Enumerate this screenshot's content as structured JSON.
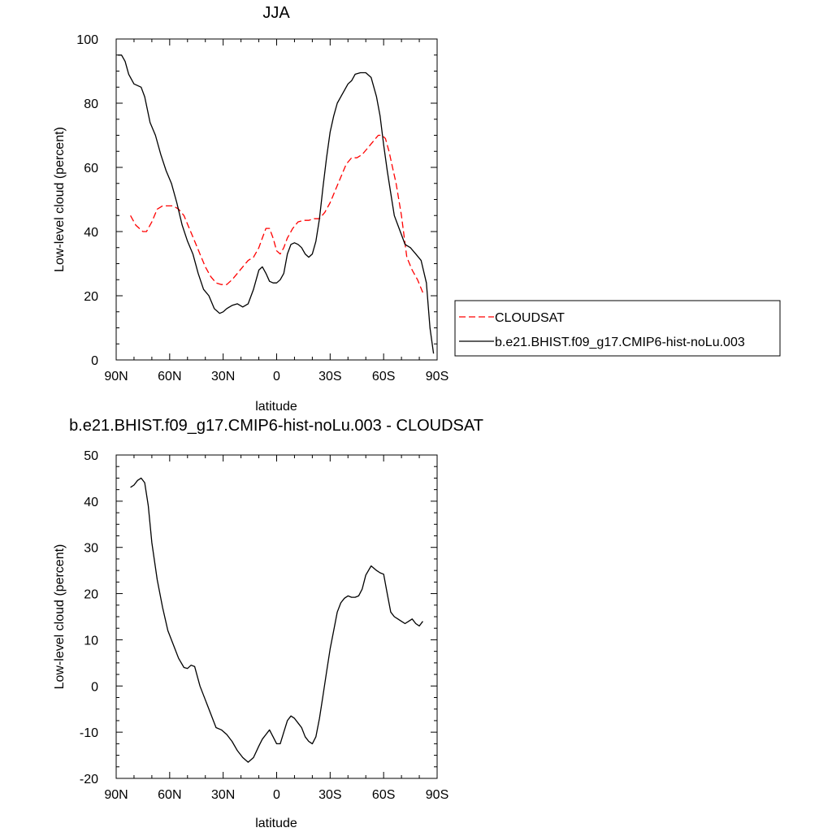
{
  "chart_data": [
    {
      "type": "line",
      "title": "JJA",
      "xlabel": "latitude",
      "ylabel": "Low-level cloud (percent)",
      "xlim": [
        90,
        -90
      ],
      "ylim": [
        0,
        100
      ],
      "xticks": [
        90,
        60,
        30,
        0,
        -30,
        -60,
        -90
      ],
      "xtick_labels": [
        "90N",
        "60N",
        "30N",
        "0",
        "30S",
        "60S",
        "90S"
      ],
      "yticks": [
        0,
        20,
        40,
        60,
        80,
        100
      ],
      "ytick_labels": [
        "0",
        "20",
        "40",
        "60",
        "80",
        "100"
      ],
      "legend_position": "right",
      "series": [
        {
          "name": "CLOUDSAT",
          "color": "#ff0000",
          "dash": "dashed",
          "x": [
            82,
            79,
            77,
            75,
            73,
            70,
            67,
            64,
            61,
            58,
            55,
            52,
            49,
            46,
            43,
            40,
            37,
            34,
            31,
            28,
            25,
            22,
            19,
            16,
            13,
            10,
            8,
            6,
            4,
            2,
            0,
            -2,
            -4,
            -6,
            -9,
            -12,
            -15,
            -18,
            -21,
            -24,
            -27,
            -30,
            -33,
            -36,
            -39,
            -42,
            -45,
            -48,
            -51,
            -54,
            -57,
            -59,
            -61,
            -63,
            -65,
            -67,
            -70,
            -73,
            -76,
            -79,
            -82
          ],
          "y": [
            45,
            42,
            41,
            40,
            40,
            43,
            47,
            48,
            48,
            48,
            47,
            45,
            41,
            37,
            33,
            29,
            26,
            24,
            23.5,
            23.5,
            25,
            27,
            29,
            31,
            32,
            35,
            38,
            41,
            41,
            38,
            34,
            33,
            35,
            38,
            41,
            43,
            43.5,
            43.5,
            44,
            44,
            46,
            49,
            53,
            57,
            61,
            63,
            63,
            64,
            66,
            68,
            70,
            70,
            69,
            65,
            60,
            55,
            45,
            32,
            28,
            25,
            21
          ]
        },
        {
          "name": "b.e21.BHIST.f09_g17.CMIP6-hist-noLu.003",
          "color": "#000000",
          "dash": "solid",
          "x": [
            89,
            87,
            85,
            83,
            80,
            78,
            76,
            74,
            71,
            68,
            65,
            62,
            59,
            56,
            53,
            50,
            47,
            44,
            41,
            38,
            35,
            32,
            30,
            28,
            25,
            22,
            19,
            16,
            13,
            10,
            8,
            6,
            4,
            2,
            0,
            -2,
            -4,
            -6,
            -8,
            -10,
            -12,
            -14,
            -16,
            -18,
            -20,
            -22,
            -24,
            -26,
            -28,
            -30,
            -32,
            -34,
            -36,
            -38,
            -40,
            -42,
            -44,
            -47,
            -50,
            -53,
            -56,
            -58,
            -60,
            -62,
            -64,
            -66,
            -68,
            -70,
            -72,
            -75,
            -78,
            -81,
            -84,
            -86,
            -88
          ],
          "y": [
            95,
            95,
            93,
            89,
            86,
            85.5,
            85,
            82,
            74,
            70,
            64,
            59,
            55,
            49,
            42,
            37,
            33,
            27,
            22,
            20,
            16,
            14.5,
            15,
            16,
            17,
            17.5,
            16.5,
            17.5,
            22,
            28,
            29,
            27,
            24.5,
            24,
            24,
            25,
            27,
            33,
            36,
            36.5,
            36,
            35,
            33,
            32,
            33,
            37,
            44,
            54,
            63,
            71,
            76,
            80,
            82,
            84,
            86,
            87,
            89,
            89.5,
            89.5,
            88,
            82,
            76,
            67,
            59,
            52,
            45,
            42,
            39,
            36,
            35,
            33,
            31,
            24,
            10,
            2
          ]
        }
      ]
    },
    {
      "type": "line",
      "title": "b.e21.BHIST.f09_g17.CMIP6-hist-noLu.003 - CLOUDSAT",
      "xlabel": "latitude",
      "ylabel": "Low-level cloud (percent)",
      "xlim": [
        90,
        -90
      ],
      "ylim": [
        -20,
        50
      ],
      "xticks": [
        90,
        60,
        30,
        0,
        -30,
        -60,
        -90
      ],
      "xtick_labels": [
        "90N",
        "60N",
        "30N",
        "0",
        "30S",
        "60S",
        "90S"
      ],
      "yticks": [
        -20,
        -10,
        0,
        10,
        20,
        30,
        40,
        50
      ],
      "ytick_labels": [
        "-20",
        "-10",
        "0",
        "10",
        "20",
        "30",
        "40",
        "50"
      ],
      "series": [
        {
          "color": "#000000",
          "dash": "solid",
          "x": [
            82,
            80,
            78,
            76,
            74,
            72,
            70,
            67,
            64,
            61,
            58,
            55,
            52,
            50,
            48,
            46,
            43,
            40,
            37,
            34,
            31,
            28,
            25,
            22,
            19,
            16,
            13,
            10,
            8,
            6,
            4,
            2,
            0,
            -2,
            -4,
            -6,
            -8,
            -10,
            -12,
            -14,
            -16,
            -18,
            -20,
            -22,
            -24,
            -26,
            -28,
            -30,
            -32,
            -34,
            -36,
            -38,
            -40,
            -42,
            -44,
            -46,
            -48,
            -50,
            -53,
            -56,
            -58,
            -60,
            -62,
            -64,
            -66,
            -68,
            -70,
            -72,
            -74,
            -76,
            -78,
            -80,
            -82
          ],
          "y": [
            43,
            43.5,
            44.5,
            45,
            44,
            39,
            31,
            23,
            17,
            12,
            9,
            6,
            4,
            3.8,
            4.5,
            4.2,
            0,
            -3,
            -6,
            -9,
            -9.5,
            -10.5,
            -12,
            -14,
            -15.5,
            -16.5,
            -15.5,
            -13,
            -11.5,
            -10.5,
            -9.5,
            -11,
            -12.5,
            -12.5,
            -10,
            -7.5,
            -6.5,
            -7,
            -8,
            -9,
            -11,
            -12,
            -12.5,
            -11,
            -7,
            -2,
            3,
            8,
            12,
            16,
            18,
            19,
            19.5,
            19.2,
            19.2,
            19.5,
            21,
            24,
            26,
            25,
            24.5,
            24.2,
            20,
            16,
            15,
            14.5,
            14,
            13.5,
            14,
            14.5,
            13.5,
            13,
            14
          ]
        }
      ]
    }
  ]
}
